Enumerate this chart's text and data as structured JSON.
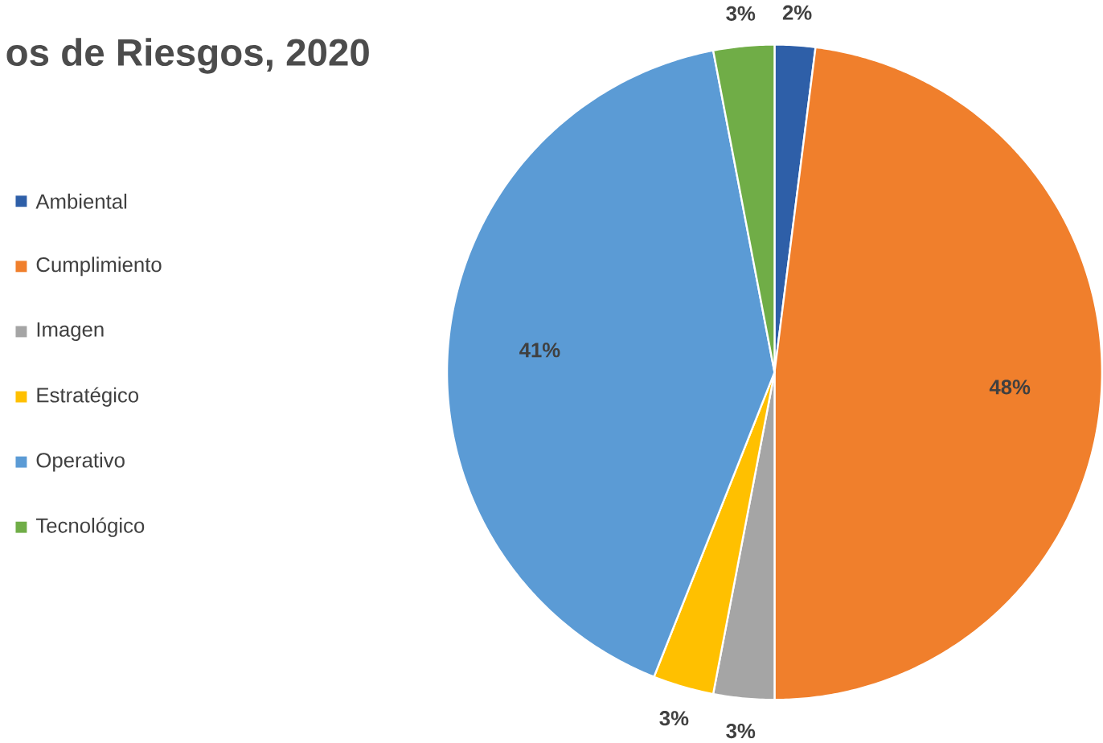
{
  "chart_data": {
    "type": "pie",
    "title": "os de Riesgos, 2020",
    "categories": [
      "Ambiental",
      "Cumplimiento",
      "Imagen",
      "Estratégico",
      "Operativo",
      "Tecnológico"
    ],
    "values": [
      2,
      48,
      3,
      3,
      41,
      3
    ],
    "value_labels": [
      "2%",
      "48%",
      "3%",
      "3%",
      "41%",
      "3%"
    ],
    "colors": [
      "#2e5fa8",
      "#f07f2c",
      "#a5a5a5",
      "#ffc000",
      "#5b9bd5",
      "#70ad47"
    ],
    "legend": "left"
  }
}
